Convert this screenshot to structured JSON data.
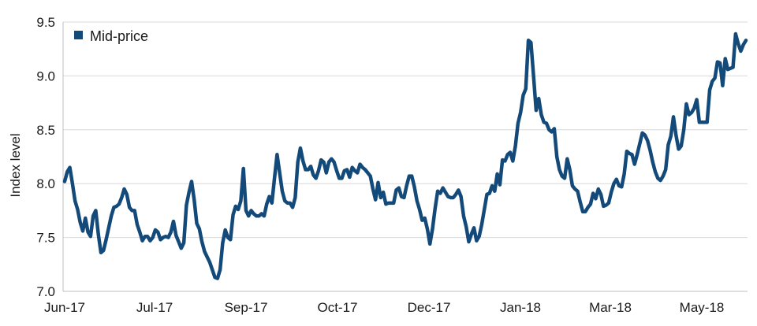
{
  "chart_data": {
    "type": "line",
    "title": "",
    "xlabel": "",
    "ylabel": "Index level",
    "ylim": [
      7.0,
      9.5
    ],
    "yticks": [
      "7.0",
      "7.5",
      "8.0",
      "8.5",
      "9.0",
      "9.5"
    ],
    "xticks": [
      "Jun-17",
      "Jul-17",
      "Sep-17",
      "Oct-17",
      "Dec-17",
      "Jan-18",
      "Mar-18",
      "May-18"
    ],
    "grid": true,
    "legend_position": "top-left",
    "series": [
      {
        "name": "Mid-price",
        "color": "#134a7a",
        "values": [
          8.02,
          8.11,
          8.15,
          8.0,
          7.84,
          7.76,
          7.64,
          7.56,
          7.68,
          7.55,
          7.51,
          7.7,
          7.75,
          7.53,
          7.36,
          7.38,
          7.48,
          7.59,
          7.7,
          7.78,
          7.79,
          7.81,
          7.87,
          7.95,
          7.9,
          7.78,
          7.75,
          7.75,
          7.62,
          7.55,
          7.47,
          7.51,
          7.51,
          7.47,
          7.5,
          7.57,
          7.55,
          7.48,
          7.5,
          7.51,
          7.5,
          7.55,
          7.65,
          7.52,
          7.46,
          7.4,
          7.45,
          7.8,
          7.92,
          8.02,
          7.85,
          7.63,
          7.58,
          7.46,
          7.37,
          7.32,
          7.27,
          7.2,
          7.13,
          7.12,
          7.2,
          7.45,
          7.57,
          7.5,
          7.48,
          7.71,
          7.79,
          7.76,
          7.84,
          8.14,
          7.75,
          7.7,
          7.75,
          7.72,
          7.7,
          7.7,
          7.72,
          7.7,
          7.81,
          7.88,
          7.82,
          8.05,
          8.27,
          8.1,
          7.93,
          7.84,
          7.82,
          7.82,
          7.78,
          7.87,
          8.2,
          8.33,
          8.21,
          8.13,
          8.13,
          8.16,
          8.08,
          8.05,
          8.12,
          8.22,
          8.2,
          8.1,
          8.2,
          8.23,
          8.2,
          8.12,
          8.05,
          8.05,
          8.12,
          8.13,
          8.06,
          8.15,
          8.12,
          8.1,
          8.18,
          8.15,
          8.13,
          8.1,
          8.07,
          7.95,
          7.85,
          8.01,
          7.87,
          7.92,
          7.81,
          7.82,
          7.82,
          7.82,
          7.94,
          7.96,
          7.88,
          7.87,
          7.98,
          8.07,
          8.07,
          7.97,
          7.84,
          7.76,
          7.66,
          7.68,
          7.58,
          7.44,
          7.58,
          7.77,
          7.93,
          7.91,
          7.96,
          7.92,
          7.88,
          7.87,
          7.87,
          7.9,
          7.94,
          7.88,
          7.7,
          7.6,
          7.46,
          7.53,
          7.59,
          7.47,
          7.51,
          7.62,
          7.76,
          7.9,
          7.91,
          7.98,
          7.93,
          8.09,
          7.99,
          8.22,
          8.21,
          8.27,
          8.29,
          8.21,
          8.35,
          8.56,
          8.66,
          8.82,
          8.88,
          9.33,
          9.31,
          9.0,
          8.68,
          8.79,
          8.64,
          8.57,
          8.56,
          8.5,
          8.48,
          8.51,
          8.25,
          8.13,
          8.07,
          8.05,
          8.23,
          8.13,
          7.98,
          7.95,
          7.93,
          7.83,
          7.74,
          7.74,
          7.78,
          7.81,
          7.91,
          7.86,
          7.95,
          7.9,
          7.79,
          7.8,
          7.82,
          7.92,
          8.0,
          8.04,
          7.98,
          7.97,
          8.09,
          8.3,
          8.28,
          8.27,
          8.18,
          8.27,
          8.37,
          8.47,
          8.45,
          8.4,
          8.31,
          8.2,
          8.11,
          8.05,
          8.03,
          8.07,
          8.13,
          8.36,
          8.44,
          8.62,
          8.45,
          8.32,
          8.35,
          8.5,
          8.74,
          8.64,
          8.66,
          8.7,
          8.78,
          8.57,
          8.57,
          8.57,
          8.57,
          8.87,
          8.95,
          8.98,
          9.13,
          9.12,
          8.91,
          9.16,
          9.06,
          9.07,
          9.08,
          9.39,
          9.3,
          9.23,
          9.29,
          9.33
        ]
      }
    ]
  }
}
